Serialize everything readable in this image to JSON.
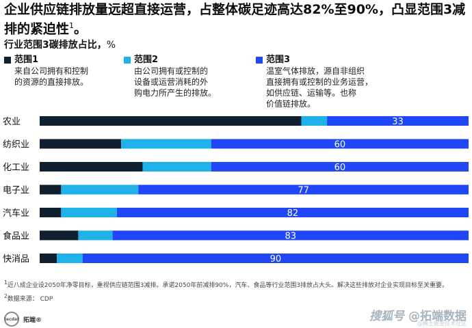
{
  "title": {
    "text": "企业供应链排放量远超直接运营，占整体碳足迹高达82%至90%，凸显范围3减排的紧迫性",
    "sup": "1"
  },
  "subtitle": {
    "text": "行业范围3碳排放占比，",
    "unit": "%"
  },
  "legend": [
    {
      "label": "范围1",
      "desc": "来自公司拥有和控制\n的资源的直接排放。",
      "color": "#0f1f2e"
    },
    {
      "label": "范围2",
      "desc": "由公司拥有或控制的\n设备或运营消耗的外\n购电力所产生的排放。",
      "color": "#1fb2e8"
    },
    {
      "label": "范围3",
      "desc": "温室气体排放，源自非组织\n直接拥有或控制的业务运营，\n如供应链、运输等。也称\n价值链排放。",
      "color": "#1f47f5"
    }
  ],
  "chart_data": {
    "type": "bar",
    "orientation": "horizontal",
    "stacked": true,
    "categories": [
      "农业",
      "纺织业",
      "化工业",
      "电子业",
      "汽车业",
      "食品业",
      "快消品"
    ],
    "series": [
      {
        "name": "范围1",
        "values": [
          61,
          19,
          24,
          5,
          5,
          9,
          4
        ]
      },
      {
        "name": "范围2",
        "values": [
          6,
          21,
          16,
          18,
          13,
          8,
          6
        ]
      },
      {
        "name": "范围3",
        "values": [
          33,
          60,
          60,
          77,
          82,
          83,
          90
        ]
      }
    ],
    "data_labels": [
      "33",
      "60",
      "60",
      "77",
      "82",
      "83",
      "90"
    ],
    "xlim": [
      0,
      100
    ],
    "grid": false
  },
  "footnotes": {
    "note1": "近八成企业设2050年净零目标，重视供应链范围3减排。承诺2050年前减排90%，汽车、食品等行业范围3排放占大头。解决这些排放对企业实现目标至关重要。",
    "note1_mark": "1",
    "source": "数据来源： CDP",
    "source_mark": "2"
  },
  "branding": {
    "left_logo": "tecdat",
    "left_name": "拓端®",
    "right_watermark_a": "搜狐号",
    "right_watermark_b": "@拓端数据",
    "right_watermark_small": "@稀土掘金技术社区"
  }
}
